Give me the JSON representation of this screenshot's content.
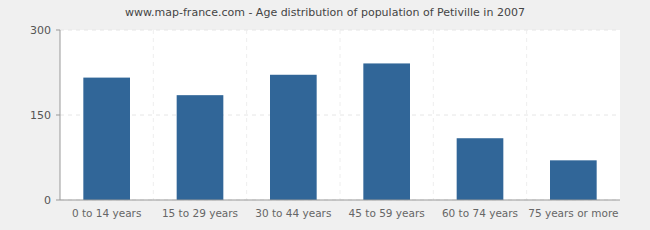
{
  "chart_data": {
    "type": "bar",
    "title": "www.map-france.com - Age distribution of population of Petiville in 2007",
    "categories": [
      "0 to 14 years",
      "15 to 29 years",
      "30 to 44 years",
      "45 to 59 years",
      "60 to 74 years",
      "75 years or more"
    ],
    "values": [
      216,
      185,
      221,
      241,
      109,
      70
    ],
    "color": "#316698",
    "ylim": [
      0,
      300
    ],
    "yticks": [
      0,
      150,
      300
    ],
    "grid": true
  }
}
